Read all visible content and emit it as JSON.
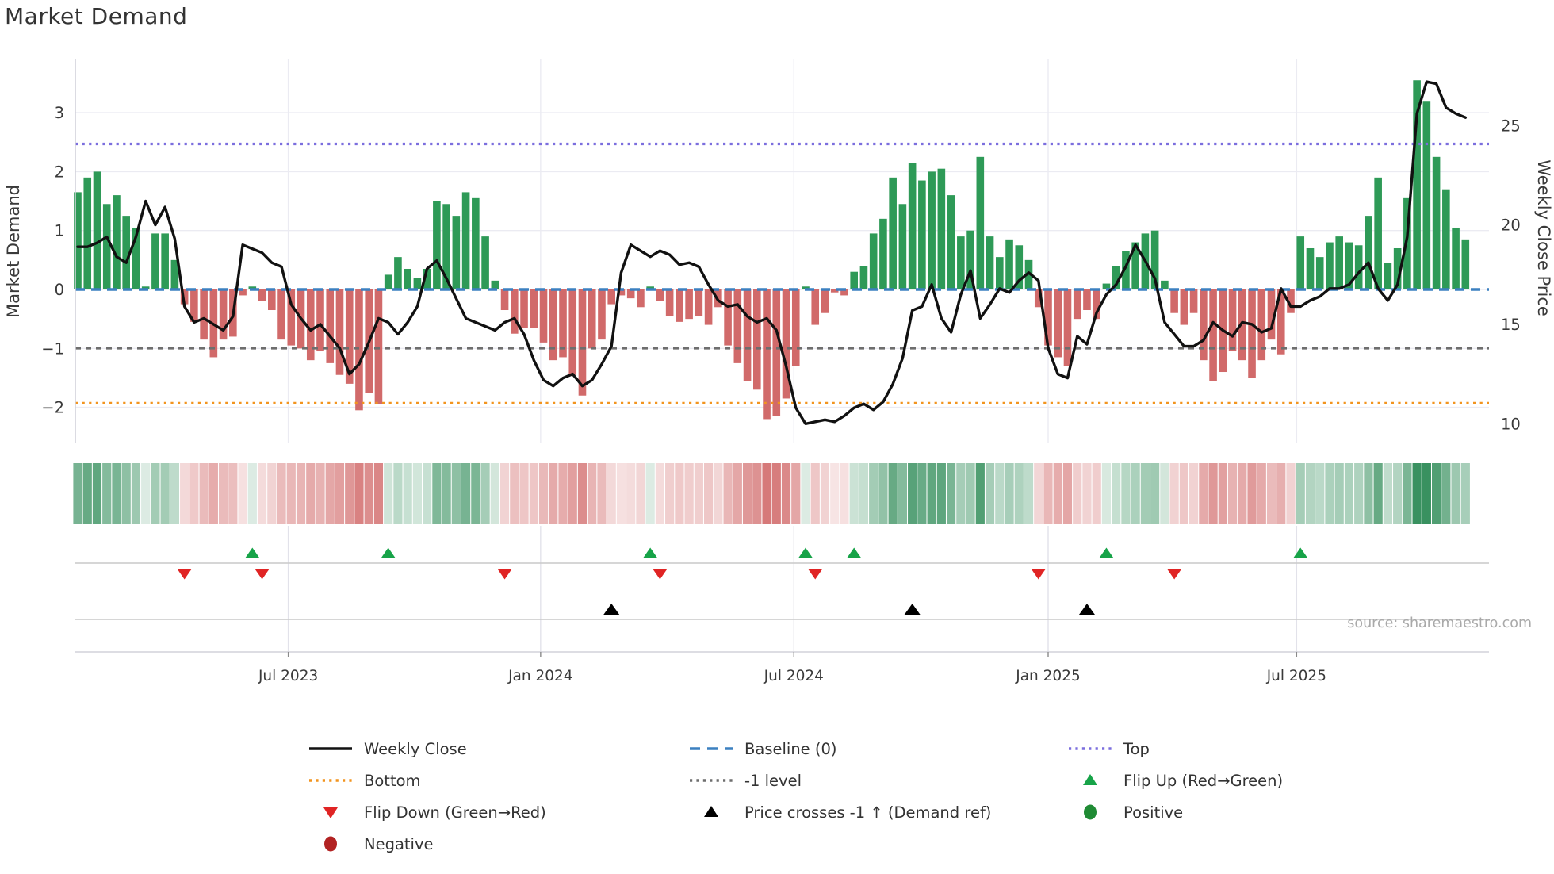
{
  "title": "Market Demand",
  "source": "source: sharemaestro.com",
  "y_left": {
    "label": "Market Demand",
    "tick_labels": [
      "3",
      "2",
      "1",
      "0",
      "−1",
      "−2"
    ],
    "tick_values": [
      3,
      2,
      1,
      0,
      -1,
      -2
    ]
  },
  "y_right": {
    "label": "Weekly Close Price",
    "tick_labels": [
      "25",
      "20",
      "15",
      "10"
    ],
    "tick_values": [
      25,
      20,
      15,
      10
    ]
  },
  "x_axis": {
    "tick_labels": [
      "Jul 2023",
      "Jan 2024",
      "Jul 2024",
      "Jan 2025",
      "Jul 2025"
    ],
    "tick_weeks": [
      21.7,
      47.7,
      73.8,
      100.0,
      125.6
    ]
  },
  "colors": {
    "bar_positive": "#2e9a57",
    "bar_negative": "#d16a6a",
    "price_line": "#111111",
    "baseline": "#3c80c0",
    "top_line": "#7b6ede",
    "bottom_line": "#f2941f",
    "minus_one_line": "#6e6e6e",
    "flip_up": "#17a348",
    "flip_down": "#e02424",
    "price_cross": "#000000",
    "positive_dot": "#1f8b34",
    "negative_dot": "#b22222",
    "grid": "#ebebf2",
    "spine": "#d2d2da",
    "row_line": "#c9c9c9",
    "tick_text": "#3a3a3a",
    "heat_green": "46,139,87",
    "heat_red": "205,92,92"
  },
  "legend": [
    {
      "label": "Weekly Close",
      "type": "line",
      "color": "#111111"
    },
    {
      "label": "Baseline (0)",
      "type": "dashed",
      "color": "#3c80c0"
    },
    {
      "label": "Top",
      "type": "dotted",
      "color": "#7b6ede"
    },
    {
      "label": "Bottom",
      "type": "dotted",
      "color": "#f2941f"
    },
    {
      "label": "-1 level",
      "type": "dotted",
      "color": "#6e6e6e"
    },
    {
      "label": "Flip Up (Red→Green)",
      "type": "tri_up",
      "color": "#17a348"
    },
    {
      "label": "Flip Down (Green→Red)",
      "type": "tri_down",
      "color": "#e02424"
    },
    {
      "label": "Price crosses -1 ↑ (Demand ref)",
      "type": "tri_up",
      "color": "#000000"
    },
    {
      "label": "Positive",
      "type": "circle",
      "color": "#1f8b34"
    },
    {
      "label": "Negative",
      "type": "circle",
      "color": "#b22222"
    }
  ],
  "chart_data": {
    "type": "combo_bar_line_heatmap",
    "frequency": "weekly",
    "left_ylim": [
      -2.6,
      3.9
    ],
    "right_ylim": [
      9.0,
      28.3
    ],
    "grid": true,
    "legend_position": "bottom",
    "bar_series": {
      "name": "Market Demand",
      "axis": "left",
      "values": [
        1.65,
        1.9,
        2.0,
        1.45,
        1.6,
        1.25,
        1.05,
        0.05,
        0.95,
        0.95,
        0.5,
        -0.25,
        -0.55,
        -0.85,
        -1.15,
        -0.85,
        -0.8,
        -0.1,
        0.05,
        -0.2,
        -0.35,
        -0.85,
        -0.95,
        -1.0,
        -1.2,
        -1.05,
        -1.25,
        -1.45,
        -1.6,
        -2.05,
        -1.75,
        -1.95,
        0.25,
        0.55,
        0.35,
        0.2,
        0.35,
        1.5,
        1.45,
        1.25,
        1.65,
        1.55,
        0.9,
        0.15,
        -0.35,
        -0.75,
        -0.65,
        -0.65,
        -0.9,
        -1.2,
        -1.15,
        -1.45,
        -1.8,
        -1.0,
        -0.85,
        -0.25,
        -0.1,
        -0.15,
        -0.3,
        0.05,
        -0.2,
        -0.45,
        -0.55,
        -0.5,
        -0.45,
        -0.6,
        -0.3,
        -0.95,
        -1.25,
        -1.55,
        -1.7,
        -2.2,
        -2.15,
        -1.85,
        -1.3,
        0.05,
        -0.6,
        -0.4,
        -0.05,
        -0.1,
        0.3,
        0.4,
        0.95,
        1.2,
        1.9,
        1.45,
        2.15,
        1.85,
        2.0,
        2.05,
        1.6,
        0.9,
        1.0,
        2.25,
        0.9,
        0.55,
        0.85,
        0.75,
        0.5,
        -0.3,
        -0.95,
        -1.15,
        -1.3,
        -0.5,
        -0.35,
        -0.5,
        0.1,
        0.4,
        0.65,
        0.8,
        0.95,
        1.0,
        0.15,
        -0.4,
        -0.6,
        -0.4,
        -1.2,
        -1.55,
        -1.4,
        -1.05,
        -1.2,
        -1.5,
        -1.2,
        -0.85,
        -1.1,
        -0.4,
        0.9,
        0.7,
        0.55,
        0.8,
        0.9,
        0.8,
        0.75,
        1.25,
        1.9,
        0.45,
        0.7,
        1.55,
        3.55,
        3.2,
        2.25,
        1.7,
        1.05,
        0.85
      ]
    },
    "line_series": {
      "name": "Weekly Close",
      "axis": "right",
      "values": [
        18.9,
        18.9,
        19.1,
        19.4,
        18.4,
        18.1,
        19.4,
        21.2,
        20.0,
        20.9,
        19.3,
        15.9,
        15.1,
        15.3,
        15.0,
        14.7,
        15.4,
        19.0,
        18.8,
        18.6,
        18.1,
        17.9,
        16.0,
        15.3,
        14.7,
        15.0,
        14.4,
        13.8,
        12.5,
        13.0,
        14.1,
        15.3,
        15.1,
        14.5,
        15.1,
        15.9,
        17.8,
        18.2,
        17.3,
        16.3,
        15.3,
        15.1,
        14.9,
        14.7,
        15.1,
        15.3,
        14.5,
        13.2,
        12.2,
        11.9,
        12.3,
        12.5,
        11.9,
        12.2,
        13.0,
        13.9,
        17.6,
        19.0,
        18.7,
        18.4,
        18.7,
        18.5,
        18.0,
        18.1,
        17.9,
        17.0,
        16.2,
        15.9,
        16.0,
        15.4,
        15.1,
        15.3,
        14.7,
        12.9,
        10.8,
        10.0,
        10.1,
        10.2,
        10.1,
        10.4,
        10.8,
        11.0,
        10.7,
        11.1,
        12.0,
        13.3,
        15.7,
        15.9,
        17.0,
        15.3,
        14.6,
        16.5,
        17.7,
        15.3,
        16.0,
        16.8,
        16.6,
        17.2,
        17.6,
        17.2,
        13.8,
        12.5,
        12.3,
        14.4,
        14.0,
        15.6,
        16.5,
        17.0,
        17.9,
        19.0,
        18.2,
        17.3,
        15.1,
        14.5,
        13.9,
        13.9,
        14.2,
        15.1,
        14.7,
        14.4,
        15.1,
        15.0,
        14.6,
        14.8,
        16.8,
        15.9,
        15.9,
        16.2,
        16.4,
        16.8,
        16.8,
        17.0,
        17.6,
        18.1,
        16.8,
        16.2,
        17.0,
        19.4,
        25.6,
        27.2,
        27.1,
        25.9,
        25.6,
        25.4
      ]
    },
    "reference_lines": {
      "baseline": 0,
      "top": 2.47,
      "bottom": -1.93,
      "minus_one_level": -1
    },
    "markers": {
      "flip_up_weeks": [
        18,
        32,
        59,
        75,
        80,
        106,
        126
      ],
      "flip_down_weeks": [
        11,
        19,
        44,
        60,
        76,
        99,
        113
      ],
      "price_cross_weeks": [
        55,
        86,
        104
      ]
    },
    "heat_strip": "sign and magnitude of bar_series values"
  }
}
